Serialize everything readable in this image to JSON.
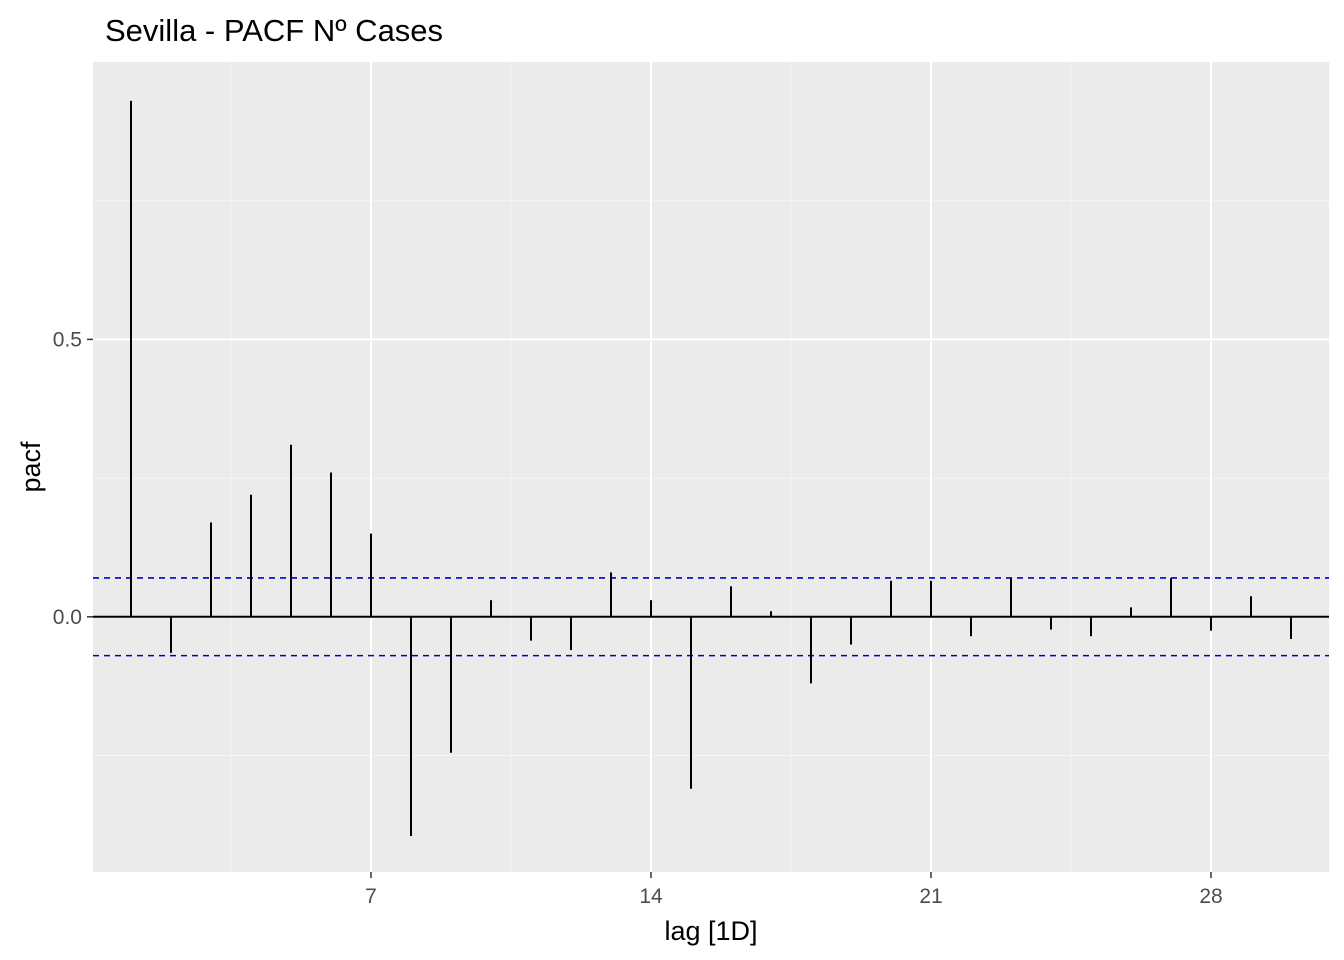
{
  "chart_data": {
    "type": "bar",
    "title": "Sevilla - PACF Nº Cases",
    "xlabel": "lag [1D]",
    "ylabel": "pacf",
    "xlim": [
      0.05,
      30.95
    ],
    "ylim": [
      -0.46,
      1.0
    ],
    "x_ticks": [
      7,
      14,
      21,
      28
    ],
    "x_minor_ticks": [
      3.5,
      10.5,
      17.5,
      24.5
    ],
    "y_ticks": [
      0.0,
      0.5
    ],
    "y_minor_ticks": [
      -0.25,
      0.25,
      0.75
    ],
    "grid": true,
    "confidence_bounds": [
      0.07,
      -0.07
    ],
    "x": [
      1,
      2,
      3,
      4,
      5,
      6,
      7,
      8,
      9,
      10,
      11,
      12,
      13,
      14,
      15,
      16,
      17,
      18,
      19,
      20,
      21,
      22,
      23,
      24,
      25,
      26,
      27,
      28,
      29,
      30
    ],
    "values": [
      0.93,
      -0.065,
      0.17,
      0.22,
      0.31,
      0.26,
      0.15,
      -0.395,
      -0.245,
      0.03,
      -0.043,
      -0.06,
      0.08,
      0.03,
      -0.31,
      0.055,
      0.01,
      -0.12,
      -0.05,
      0.065,
      0.065,
      -0.035,
      0.07,
      -0.023,
      -0.035,
      0.017,
      0.07,
      -0.025,
      0.037,
      -0.04
    ],
    "colors": {
      "panel_background": "#ebebeb",
      "grid_major": "#ffffff",
      "grid_minor": "#f5f5f5",
      "bars": "#000000",
      "confidence_bounds": "#0000cc",
      "tick_label": "#4d4d4d",
      "tick_mark": "#333333"
    }
  }
}
